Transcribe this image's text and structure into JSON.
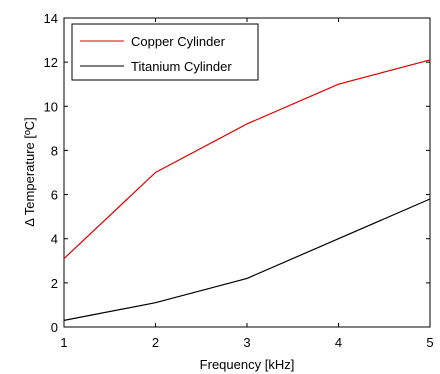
{
  "chart_data": {
    "type": "line",
    "title": "",
    "xlabel": "Frequency [kHz]",
    "ylabel": "Δ Temperature [ºC]",
    "x": [
      1,
      2,
      3,
      4,
      5
    ],
    "xlim": [
      1,
      5
    ],
    "ylim": [
      0,
      14
    ],
    "xticks": [
      "1",
      "2",
      "3",
      "4",
      "5"
    ],
    "yticks": [
      "0",
      "2",
      "4",
      "6",
      "8",
      "10",
      "12",
      "14"
    ],
    "grid": false,
    "legend_position": "top-left",
    "series": [
      {
        "name": "Copper Cylinder",
        "color": "#e00000",
        "values": [
          3.1,
          7.0,
          9.2,
          11.0,
          12.1
        ]
      },
      {
        "name": "Titanium Cylinder",
        "color": "#000000",
        "values": [
          0.3,
          1.1,
          2.2,
          4.0,
          5.8
        ]
      }
    ]
  }
}
